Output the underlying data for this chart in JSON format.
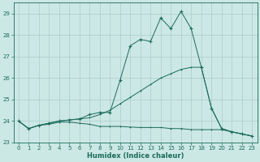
{
  "xlabel": "Humidex (Indice chaleur)",
  "background_color": "#cce8e4",
  "grid_color": "#aacccc",
  "line_color": "#1a6b5a",
  "xlim": [
    -0.5,
    23.5
  ],
  "ylim": [
    23.0,
    29.5
  ],
  "yticks": [
    23,
    24,
    25,
    26,
    27,
    28,
    29
  ],
  "xticks": [
    0,
    1,
    2,
    3,
    4,
    5,
    6,
    7,
    8,
    9,
    10,
    11,
    12,
    13,
    14,
    15,
    16,
    17,
    18,
    19,
    20,
    21,
    22,
    23
  ],
  "series1_x": [
    0,
    1,
    2,
    3,
    4,
    5,
    6,
    7,
    8,
    9,
    10,
    11,
    12,
    13,
    14,
    15,
    16,
    17,
    18,
    19,
    20,
    21,
    22,
    23
  ],
  "series1_y": [
    24.0,
    23.65,
    23.8,
    23.85,
    23.95,
    23.95,
    23.9,
    23.85,
    23.75,
    23.75,
    23.75,
    23.72,
    23.7,
    23.7,
    23.7,
    23.65,
    23.65,
    23.6,
    23.6,
    23.6,
    23.6,
    23.5,
    23.4,
    23.3
  ],
  "series2_x": [
    0,
    1,
    2,
    3,
    4,
    5,
    6,
    7,
    8,
    9,
    10,
    11,
    12,
    13,
    14,
    15,
    16,
    17,
    18,
    19,
    20,
    21,
    22,
    23
  ],
  "series2_y": [
    24.0,
    23.65,
    23.8,
    23.9,
    24.0,
    24.05,
    24.1,
    24.15,
    24.3,
    24.5,
    24.8,
    25.1,
    25.4,
    25.7,
    26.0,
    26.2,
    26.4,
    26.5,
    26.5,
    24.6,
    23.65,
    23.5,
    23.4,
    23.3
  ],
  "series3_x": [
    0,
    1,
    2,
    3,
    4,
    5,
    6,
    7,
    8,
    9,
    10,
    11,
    12,
    13,
    14,
    15,
    16,
    17,
    18,
    19,
    20,
    21,
    22,
    23
  ],
  "series3_y": [
    24.0,
    23.65,
    23.8,
    23.9,
    24.0,
    24.05,
    24.1,
    24.3,
    24.4,
    24.4,
    25.9,
    27.5,
    27.8,
    27.7,
    28.8,
    28.3,
    29.1,
    28.3,
    26.5,
    24.6,
    23.65,
    23.5,
    23.4,
    23.3
  ]
}
